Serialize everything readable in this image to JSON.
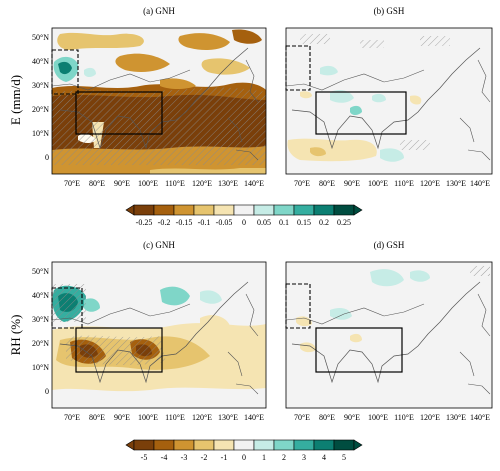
{
  "figure": {
    "rows": [
      {
        "ylabel": "E (mm/d)",
        "panels": [
          {
            "title": "(a) GNH",
            "kind": "gnh-e"
          },
          {
            "title": "(b) GSH",
            "kind": "gsh"
          }
        ]
      },
      {
        "ylabel": "RH (%)",
        "panels": [
          {
            "title": "(c) GNH",
            "kind": "gnh-rh"
          },
          {
            "title": "(d) GSH",
            "kind": "gsh"
          }
        ]
      }
    ],
    "lat_ticks": [
      "50°N",
      "40°N",
      "30°N",
      "20°N",
      "10°N",
      "0"
    ],
    "lon_ticks": [
      "70°E",
      "80°E",
      "90°E",
      "100°E",
      "110°E",
      "120°E",
      "130°E",
      "140°E"
    ],
    "colorbars": [
      {
        "labels": [
          "-0.25",
          "-0.2",
          "-0.15",
          "-0.1",
          "-0.05",
          "0",
          "0.05",
          "0.1",
          "0.15",
          "0.2",
          "0.25"
        ]
      },
      {
        "labels": [
          "-5",
          "-4",
          "-3",
          "-2",
          "-1",
          "0",
          "1",
          "2",
          "3",
          "4",
          "5"
        ]
      }
    ],
    "palette": [
      "#7a3f0a",
      "#a5600e",
      "#cf9431",
      "#e6c46e",
      "#f5e4b2",
      "#f2f2f2",
      "#c6ece6",
      "#7fd6c8",
      "#35aea0",
      "#0c7f72",
      "#004d40"
    ]
  }
}
